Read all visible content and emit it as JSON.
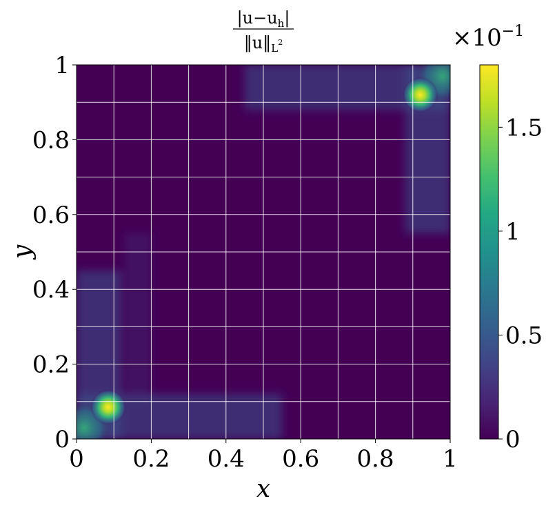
{
  "chart_data": {
    "type": "heatmap",
    "title_expr": {
      "numerator": "|u−u",
      "numerator_sub": "h",
      "numerator_close": "|",
      "denominator": "‖u‖",
      "denominator_sub": "L",
      "denominator_sup": "2"
    },
    "xlabel": "x",
    "ylabel": "y",
    "xlim": [
      0,
      1
    ],
    "ylim": [
      0,
      1
    ],
    "xticks": [
      0,
      0.2,
      0.4,
      0.6,
      0.8,
      1
    ],
    "xtick_labels": [
      "0",
      "0.2",
      "0.4",
      "0.6",
      "0.8",
      "1"
    ],
    "yticks": [
      0,
      0.2,
      0.4,
      0.6,
      0.8,
      1
    ],
    "ytick_labels": [
      "0",
      "0.2",
      "0.4",
      "0.6",
      "0.8",
      "1"
    ],
    "grid": {
      "on": true,
      "spacing": 0.1,
      "color": "#ffffff"
    },
    "colormap": "viridis",
    "colorbar": {
      "range": [
        0,
        1.8
      ],
      "ticks": [
        0,
        0.5,
        1,
        1.5
      ],
      "tick_labels": [
        "0",
        "0.5",
        "1",
        "1.5"
      ],
      "multiplier_base": "×10",
      "multiplier_exp": "−1"
    },
    "features": [
      {
        "name": "peak-bottom-left",
        "x": 0.085,
        "y": 0.085,
        "value": 1.8
      },
      {
        "name": "peak-top-right",
        "x": 0.92,
        "y": 0.92,
        "value": 1.8
      }
    ]
  }
}
